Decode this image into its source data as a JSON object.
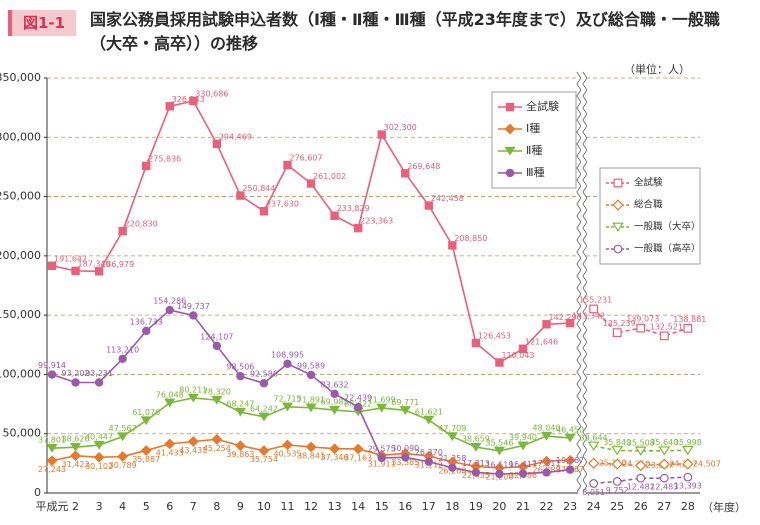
{
  "chart_data": {
    "type": "line",
    "badge": "図1-1",
    "title": "国家公務員採用試験申込者数（Ⅰ種・Ⅱ種・Ⅲ種（平成23年度まで）及び総合職・一般職（大卒・高卒））の推移",
    "unit": "（単位：人）",
    "x_unit": "（年度）",
    "categories": [
      "平成元",
      "2",
      "3",
      "4",
      "5",
      "6",
      "7",
      "8",
      "9",
      "10",
      "11",
      "12",
      "13",
      "14",
      "15",
      "16",
      "17",
      "18",
      "19",
      "20",
      "21",
      "22",
      "23",
      "24",
      "25",
      "26",
      "27",
      "28"
    ],
    "ylim": [
      0,
      350000
    ],
    "yticks": [
      0,
      {
        "value": 50000,
        "label": "50,000"
      },
      {
        "value": 100000,
        "label": "100,000"
      },
      {
        "value": 150000,
        "label": "150,000"
      },
      {
        "value": 200000,
        "label": "200,000"
      },
      {
        "value": 250000,
        "label": "250,000"
      },
      {
        "value": 300000,
        "label": "300,000"
      },
      {
        "value": 350000,
        "label": "350,000"
      }
    ],
    "grid": true,
    "series": [
      {
        "name": "全試験",
        "color": "#e8607a",
        "marker": "square",
        "line_style": "solid",
        "legend": "left",
        "values": [
          191642,
          187340,
          186979,
          220830,
          275836,
          326143,
          330686,
          294469,
          250844,
          237630,
          276607,
          261002,
          233829,
          223363,
          302300,
          269648,
          242458,
          208850,
          126453,
          110043,
          121646,
          142290,
          143342,
          null,
          null,
          null,
          null,
          null
        ],
        "value_labels": [
          "191,642",
          "187,340",
          "186,979",
          "220,830",
          "275,836",
          "326,143",
          "330,686",
          "294,469",
          "250,844",
          "237,630",
          "276,607",
          "261,002",
          "233,829",
          "223,363",
          "302,300",
          "269,648",
          "242,458",
          "208,850",
          "126,453",
          "110,043",
          "121,646",
          "142,290",
          "143,342",
          null,
          null,
          null,
          null,
          null
        ]
      },
      {
        "name": "Ⅰ種",
        "color": "#e8782a",
        "marker": "diamond",
        "line_style": "solid",
        "legend": "left",
        "values": [
          27243,
          31422,
          30102,
          30789,
          35887,
          41433,
          43431,
          45254,
          39863,
          35754,
          40535,
          38841,
          37346,
          37163,
          31911,
          33385,
          31112,
          26268,
          22435,
          21200,
          22186,
          26888,
          27567,
          null,
          null,
          null,
          null,
          null
        ],
        "value_labels": [
          "27,243",
          "31,422",
          "30,102",
          "30,789",
          "35,887",
          "41,433",
          "43,431",
          "45,254",
          "39,863",
          "35,754",
          "40,535",
          "38,841",
          "37,346",
          "37,163",
          "31,911",
          "33,385",
          "31,112",
          "26,268",
          "22,435",
          "21,200",
          "22,186",
          "26,888",
          "27,567",
          null,
          null,
          null,
          null,
          null
        ]
      },
      {
        "name": "Ⅱ種",
        "color": "#7ab83a",
        "marker": "triangle",
        "line_style": "solid",
        "legend": "left",
        "values": [
          37801,
          38626,
          40447,
          47567,
          61076,
          76048,
          80211,
          78320,
          68247,
          64242,
          72715,
          71891,
          69985,
          68422,
          71699,
          69771,
          61621,
          47709,
          38659,
          35546,
          39940,
          48040,
          46450,
          null,
          null,
          null,
          null,
          null
        ],
        "value_labels": [
          "37,801",
          "38,626",
          "40,447",
          "47,567",
          "61,076",
          "76,048",
          "80,211",
          "78,320",
          "68,247",
          "64,242",
          "72,715",
          "71,891",
          "69,985",
          "68,422",
          "71,699",
          "69,771",
          "61,621",
          "47,709",
          "38,659",
          "35,546",
          "39,940",
          "48,040",
          "46,450",
          null,
          null,
          null,
          null,
          null
        ]
      },
      {
        "name": "Ⅲ種",
        "color": "#9a5aa8",
        "marker": "circle",
        "line_style": "solid",
        "legend": "left",
        "values": [
          99914,
          93202,
          93231,
          113210,
          136733,
          154286,
          149737,
          124107,
          98506,
          92586,
          108995,
          99589,
          83632,
          72439,
          29575,
          30090,
          26370,
          21358,
          17313,
          16119,
          16417,
          17311,
          19667,
          null,
          null,
          null,
          null,
          null
        ],
        "value_labels": [
          "99,914",
          "93,202",
          "93,231",
          "113,210",
          "136,733",
          "154,286",
          "149,737",
          "124,107",
          "98,506",
          "92,586",
          "108,995",
          "99,589",
          "83,632",
          "72,439",
          "29,575",
          "30,090",
          "26,370",
          "21,358",
          "17,313",
          "16,119",
          "16,417",
          "17,311",
          "19,667",
          null,
          null,
          null,
          null,
          null
        ]
      },
      {
        "name": "全試験",
        "color": "#e8607a",
        "marker": "square",
        "line_style": "dashed",
        "legend": "right",
        "values": [
          null,
          null,
          null,
          null,
          null,
          null,
          null,
          null,
          null,
          null,
          null,
          null,
          null,
          null,
          null,
          null,
          null,
          null,
          null,
          null,
          null,
          null,
          null,
          155231,
          135239,
          139073,
          132521,
          138881
        ],
        "value_labels": [
          null,
          null,
          null,
          null,
          null,
          null,
          null,
          null,
          null,
          null,
          null,
          null,
          null,
          null,
          null,
          null,
          null,
          null,
          null,
          null,
          null,
          null,
          null,
          "155,231",
          "135,239",
          "139,073",
          "132,521",
          "138,881"
        ]
      },
      {
        "name": "総合職",
        "color": "#e8782a",
        "marker": "diamond",
        "line_style": "dashed",
        "legend": "right",
        "values": [
          null,
          null,
          null,
          null,
          null,
          null,
          null,
          null,
          null,
          null,
          null,
          null,
          null,
          null,
          null,
          null,
          null,
          null,
          null,
          null,
          null,
          null,
          null,
          25110,
          24360,
          23047,
          24297,
          24507
        ],
        "value_labels": [
          null,
          null,
          null,
          null,
          null,
          null,
          null,
          null,
          null,
          null,
          null,
          null,
          null,
          null,
          null,
          null,
          null,
          null,
          null,
          null,
          null,
          null,
          null,
          "25,110",
          "24,360",
          "23,047",
          "24,297",
          "24,507"
        ]
      },
      {
        "name": "一般職（大卒）",
        "color": "#7ab83a",
        "marker": "triangle",
        "line_style": "dashed",
        "legend": "right",
        "values": [
          null,
          null,
          null,
          null,
          null,
          null,
          null,
          null,
          null,
          null,
          null,
          null,
          null,
          null,
          null,
          null,
          null,
          null,
          null,
          null,
          null,
          null,
          null,
          39644,
          35840,
          35508,
          35640,
          35998
        ],
        "value_labels": [
          null,
          null,
          null,
          null,
          null,
          null,
          null,
          null,
          null,
          null,
          null,
          null,
          null,
          null,
          null,
          null,
          null,
          null,
          null,
          null,
          null,
          null,
          null,
          "39,644",
          "35,840",
          "35,508",
          "35,640",
          "35,998"
        ]
      },
      {
        "name": "一般職（高卒）",
        "color": "#9a5aa8",
        "marker": "circle",
        "line_style": "dashed",
        "legend": "right",
        "values": [
          null,
          null,
          null,
          null,
          null,
          null,
          null,
          null,
          null,
          null,
          null,
          null,
          null,
          null,
          null,
          null,
          null,
          null,
          null,
          null,
          null,
          null,
          null,
          8051,
          9752,
          12482,
          12483,
          13393
        ],
        "value_labels": [
          null,
          null,
          null,
          null,
          null,
          null,
          null,
          null,
          null,
          null,
          null,
          null,
          null,
          null,
          null,
          null,
          null,
          null,
          null,
          null,
          null,
          null,
          null,
          "8,051",
          "9,752",
          "12,482",
          "12,483",
          "13,393"
        ]
      }
    ]
  }
}
